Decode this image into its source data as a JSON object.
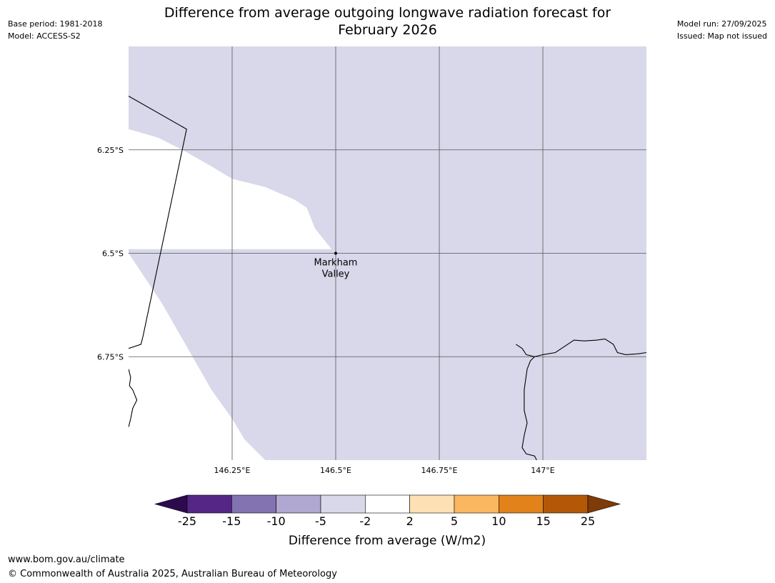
{
  "header": {
    "title_line1": "Difference from average outgoing longwave radiation forecast for",
    "title_line2": "February 2026",
    "base_period": "Base period: 1981-2018",
    "model": "Model: ACCESS-S2",
    "model_run": "Model run: 27/09/2025",
    "issued": "Issued: Map not issued"
  },
  "map": {
    "extent": {
      "lon_min": 146.0,
      "lon_max": 147.25,
      "lat_min": -7.0,
      "lat_max": -6.0
    },
    "longitude_ticks": [
      {
        "value": 146.25,
        "label": "146.25°E"
      },
      {
        "value": 146.5,
        "label": "146.5°E"
      },
      {
        "value": 146.75,
        "label": "146.75°E"
      },
      {
        "value": 147.0,
        "label": "147°E"
      }
    ],
    "latitude_ticks": [
      {
        "value": -6.25,
        "label": "6.25°S"
      },
      {
        "value": -6.5,
        "label": "6.5°S"
      },
      {
        "value": -6.75,
        "label": "6.75°S"
      }
    ],
    "grid": true,
    "anomaly_fill_color": "#d8d8ea",
    "anomaly_region": [
      [
        146.0,
        -6.0
      ],
      [
        147.25,
        -6.0
      ],
      [
        147.25,
        -7.0
      ],
      [
        146.33,
        -7.0
      ],
      [
        146.28,
        -6.95
      ],
      [
        146.25,
        -6.9
      ],
      [
        146.2,
        -6.83
      ],
      [
        146.16,
        -6.76
      ],
      [
        146.12,
        -6.69
      ],
      [
        146.08,
        -6.62
      ],
      [
        146.04,
        -6.56
      ],
      [
        146.0,
        -6.5
      ],
      [
        146.0,
        -6.49
      ],
      [
        146.49,
        -6.49
      ],
      [
        146.45,
        -6.44
      ],
      [
        146.43,
        -6.39
      ],
      [
        146.4,
        -6.37
      ],
      [
        146.33,
        -6.34
      ],
      [
        146.25,
        -6.32
      ],
      [
        146.2,
        -6.29
      ],
      [
        146.13,
        -6.25
      ],
      [
        146.07,
        -6.22
      ],
      [
        146.0,
        -6.2
      ]
    ],
    "border_line": [
      [
        146.0,
        -6.12
      ],
      [
        146.14,
        -6.2
      ],
      [
        146.035,
        -6.7
      ],
      [
        146.03,
        -6.72
      ],
      [
        146.0,
        -6.73
      ]
    ],
    "coast_left": [
      [
        146.0,
        -6.78
      ],
      [
        146.005,
        -6.8
      ],
      [
        146.002,
        -6.82
      ],
      [
        146.01,
        -6.83
      ],
      [
        146.02,
        -6.855
      ],
      [
        146.01,
        -6.875
      ],
      [
        146.005,
        -6.9
      ],
      [
        146.0,
        -6.92
      ]
    ],
    "coast_right": [
      [
        146.935,
        -6.72
      ],
      [
        146.95,
        -6.73
      ],
      [
        146.96,
        -6.745
      ],
      [
        146.98,
        -6.75
      ],
      [
        146.97,
        -6.76
      ],
      [
        146.962,
        -6.78
      ],
      [
        146.955,
        -6.83
      ],
      [
        146.955,
        -6.88
      ],
      [
        146.962,
        -6.91
      ],
      [
        146.955,
        -6.94
      ],
      [
        146.95,
        -6.97
      ],
      [
        146.96,
        -6.985
      ],
      [
        146.98,
        -6.99
      ],
      [
        146.985,
        -7.0
      ]
    ],
    "coast_north": [
      [
        146.98,
        -6.75
      ],
      [
        147.0,
        -6.745
      ],
      [
        147.03,
        -6.74
      ],
      [
        147.06,
        -6.72
      ],
      [
        147.075,
        -6.71
      ],
      [
        147.1,
        -6.712
      ],
      [
        147.13,
        -6.71
      ],
      [
        147.15,
        -6.707
      ],
      [
        147.17,
        -6.72
      ],
      [
        147.18,
        -6.74
      ],
      [
        147.2,
        -6.745
      ],
      [
        147.23,
        -6.743
      ],
      [
        147.25,
        -6.74
      ]
    ],
    "place": {
      "name_line1": "Markham",
      "name_line2": "Valley",
      "lon": 146.5,
      "lat": -6.5
    }
  },
  "colorbar": {
    "title": "Difference from average (W/m2)",
    "labels": [
      "-25",
      "-15",
      "-10",
      "-5",
      "-2",
      "2",
      "5",
      "10",
      "15",
      "25"
    ],
    "colors": [
      "#562686",
      "#8373b0",
      "#b0a8d0",
      "#d8d8ea",
      "#ffffff",
      "#fee0b5",
      "#fbb760",
      "#e2821a",
      "#b35807"
    ],
    "under_color": "#2d0a4e",
    "over_color": "#7f3b08"
  },
  "footer": {
    "website": "www.bom.gov.au/climate",
    "copyright": "© Commonwealth of Australia 2025, Australian Bureau of Meteorology"
  }
}
